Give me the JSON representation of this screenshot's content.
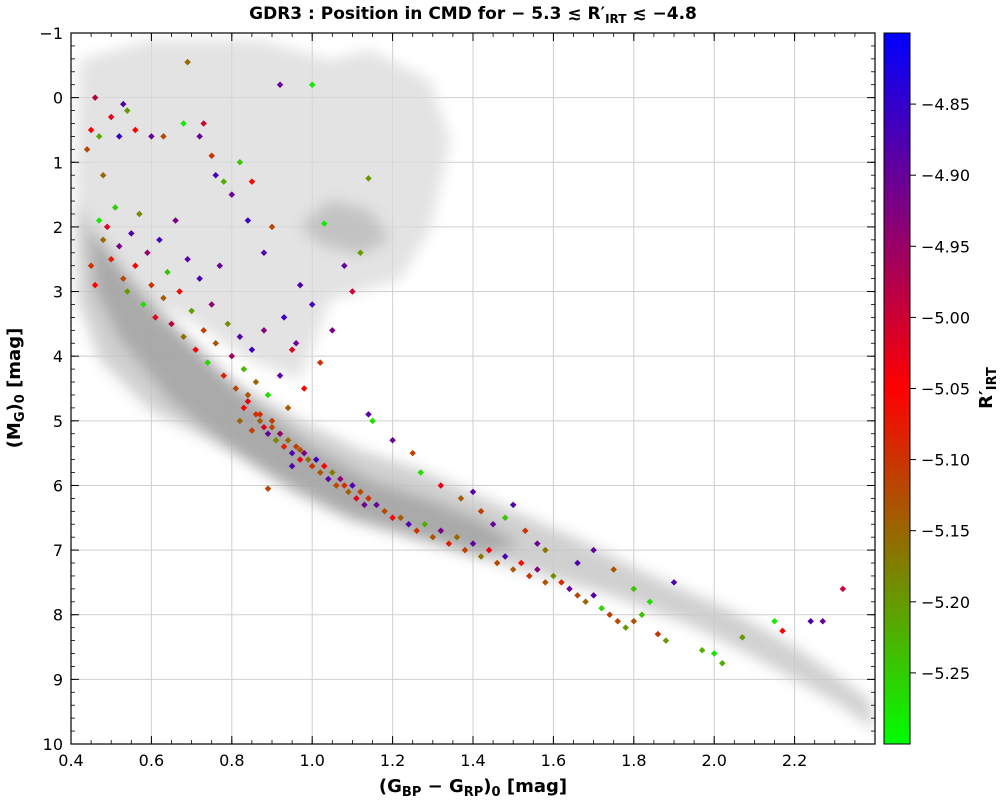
{
  "chart_data": {
    "type": "scatter",
    "title": "GDR3 :  Position in CMD for  − 5.3 ≲ R′",
    "title_sub": "IRT",
    "title_tail": " ≲ −4.8",
    "xlabel": "(G",
    "xlabel_sub1": "BP",
    "xlabel_mid": " − G",
    "xlabel_sub2": "RP",
    "xlabel_close": ")",
    "xlabel_sub3": "0",
    "xlabel_tail": " [mag]",
    "ylabel": "(M",
    "ylabel_sub1": "G",
    "ylabel_close": ")",
    "ylabel_sub2": "0",
    "ylabel_tail": " [mag]",
    "colorbar_label": "R′",
    "colorbar_label_sub": "IRT",
    "xlim": [
      0.4,
      2.4
    ],
    "ylim": [
      10,
      -1
    ],
    "y_inverted": true,
    "grid": true,
    "x_ticks": [
      "0.4",
      "0.6",
      "0.8",
      "1.0",
      "1.2",
      "1.4",
      "1.6",
      "1.8",
      "2.0",
      "2.2"
    ],
    "y_ticks": [
      "−1",
      "0",
      "1",
      "2",
      "3",
      "4",
      "5",
      "6",
      "7",
      "8",
      "9",
      "10"
    ],
    "colorbar": {
      "range": [
        -5.3,
        -4.8
      ],
      "ticks": [
        "−4.85",
        "−4.90",
        "−4.95",
        "−5.00",
        "−5.05",
        "−5.10",
        "−5.15",
        "−5.20",
        "−5.25"
      ],
      "stops": [
        "#00ff00",
        "#ff0000",
        "#0000ff"
      ]
    },
    "background_density": "gray field stars (Gaia DR3 reference population)",
    "points": [
      [
        0.44,
        0.8,
        -5.12
      ],
      [
        0.45,
        0.5,
        -5.05
      ],
      [
        0.46,
        0.0,
        -4.98
      ],
      [
        0.47,
        0.6,
        -5.22
      ],
      [
        0.48,
        1.2,
        -5.15
      ],
      [
        0.5,
        0.3,
        -5.02
      ],
      [
        0.52,
        0.6,
        -4.85
      ],
      [
        0.53,
        0.1,
        -4.88
      ],
      [
        0.54,
        0.2,
        -5.2
      ],
      [
        0.56,
        0.5,
        -5.05
      ],
      [
        0.6,
        0.6,
        -4.9
      ],
      [
        0.63,
        0.6,
        -5.12
      ],
      [
        0.68,
        0.4,
        -5.28
      ],
      [
        0.69,
        -0.55,
        -5.15
      ],
      [
        0.72,
        0.6,
        -4.9
      ],
      [
        0.73,
        0.4,
        -5.0
      ],
      [
        0.75,
        0.9,
        -5.1
      ],
      [
        0.82,
        1.0,
        -5.25
      ],
      [
        0.92,
        -0.2,
        -4.9
      ],
      [
        1.0,
        -0.2,
        -5.28
      ],
      [
        1.14,
        1.25,
        -5.2
      ],
      [
        1.12,
        2.4,
        -5.2
      ],
      [
        1.03,
        1.95,
        -5.28
      ],
      [
        0.78,
        1.3,
        -5.22
      ],
      [
        0.45,
        2.6,
        -5.1
      ],
      [
        0.46,
        2.9,
        -5.05
      ],
      [
        0.47,
        1.9,
        -5.28
      ],
      [
        0.48,
        2.2,
        -5.15
      ],
      [
        0.49,
        2.0,
        -5.02
      ],
      [
        0.5,
        2.5,
        -5.08
      ],
      [
        0.51,
        1.7,
        -5.25
      ],
      [
        0.52,
        2.3,
        -4.92
      ],
      [
        0.53,
        2.8,
        -5.12
      ],
      [
        0.54,
        3.0,
        -5.2
      ],
      [
        0.55,
        2.1,
        -4.88
      ],
      [
        0.56,
        2.6,
        -5.05
      ],
      [
        0.57,
        1.8,
        -5.18
      ],
      [
        0.58,
        3.2,
        -5.27
      ],
      [
        0.59,
        2.4,
        -4.95
      ],
      [
        0.6,
        2.9,
        -5.1
      ],
      [
        0.61,
        3.4,
        -5.02
      ],
      [
        0.62,
        2.2,
        -4.86
      ],
      [
        0.63,
        3.1,
        -5.14
      ],
      [
        0.64,
        2.7,
        -5.24
      ],
      [
        0.65,
        3.5,
        -4.98
      ],
      [
        0.66,
        1.9,
        -4.92
      ],
      [
        0.67,
        3.0,
        -5.06
      ],
      [
        0.68,
        3.7,
        -5.16
      ],
      [
        0.69,
        2.5,
        -4.89
      ],
      [
        0.7,
        3.3,
        -5.21
      ],
      [
        0.71,
        3.9,
        -5.04
      ],
      [
        0.72,
        2.8,
        -4.87
      ],
      [
        0.73,
        3.6,
        -5.11
      ],
      [
        0.74,
        4.1,
        -5.26
      ],
      [
        0.75,
        3.2,
        -4.94
      ],
      [
        0.76,
        3.8,
        -5.13
      ],
      [
        0.77,
        2.6,
        -4.9
      ],
      [
        0.78,
        4.3,
        -5.08
      ],
      [
        0.79,
        3.5,
        -5.19
      ],
      [
        0.8,
        4.0,
        -4.96
      ],
      [
        0.81,
        4.5,
        -5.12
      ],
      [
        0.82,
        3.7,
        -4.88
      ],
      [
        0.83,
        4.2,
        -5.23
      ],
      [
        0.84,
        4.7,
        -5.03
      ],
      [
        0.85,
        3.9,
        -4.86
      ],
      [
        0.86,
        4.4,
        -5.15
      ],
      [
        0.87,
        4.9,
        -5.09
      ],
      [
        0.88,
        3.6,
        -4.93
      ],
      [
        0.89,
        4.6,
        -5.27
      ],
      [
        0.9,
        5.0,
        -5.11
      ],
      [
        0.92,
        4.3,
        -4.89
      ],
      [
        0.94,
        4.8,
        -5.14
      ],
      [
        0.96,
        3.8,
        -4.91
      ],
      [
        0.98,
        4.5,
        -5.05
      ],
      [
        1.0,
        3.2,
        -4.87
      ],
      [
        1.02,
        4.1,
        -5.1
      ],
      [
        0.93,
        3.4,
        -4.86
      ],
      [
        0.95,
        3.9,
        -5.02
      ],
      [
        0.97,
        2.9,
        -4.88
      ],
      [
        1.05,
        3.6,
        -4.92
      ],
      [
        1.08,
        2.6,
        -4.9
      ],
      [
        1.1,
        3.0,
        -5.0
      ],
      [
        0.88,
        2.4,
        -4.88
      ],
      [
        0.84,
        1.9,
        -4.86
      ],
      [
        0.8,
        1.5,
        -4.9
      ],
      [
        0.76,
        1.2,
        -4.87
      ],
      [
        0.85,
        1.3,
        -5.06
      ],
      [
        0.9,
        2.0,
        -5.12
      ],
      [
        0.86,
        4.9,
        -5.1
      ],
      [
        0.87,
        5.0,
        -5.14
      ],
      [
        0.88,
        5.1,
        -5.02
      ],
      [
        0.89,
        5.2,
        -4.9
      ],
      [
        0.9,
        5.1,
        -5.12
      ],
      [
        0.91,
        5.3,
        -5.18
      ],
      [
        0.92,
        5.2,
        -4.95
      ],
      [
        0.93,
        5.4,
        -5.08
      ],
      [
        0.94,
        5.3,
        -5.15
      ],
      [
        0.95,
        5.5,
        -4.88
      ],
      [
        0.96,
        5.4,
        -5.11
      ],
      [
        0.97,
        5.6,
        -5.03
      ],
      [
        0.98,
        5.5,
        -4.92
      ],
      [
        0.99,
        5.6,
        -5.16
      ],
      [
        1.0,
        5.7,
        -5.1
      ],
      [
        1.01,
        5.6,
        -4.86
      ],
      [
        1.02,
        5.8,
        -5.13
      ],
      [
        1.03,
        5.7,
        -5.05
      ],
      [
        1.04,
        5.9,
        -4.89
      ],
      [
        1.05,
        5.8,
        -5.17
      ],
      [
        1.06,
        6.0,
        -5.12
      ],
      [
        1.07,
        5.9,
        -4.94
      ],
      [
        1.08,
        6.0,
        -5.09
      ],
      [
        1.09,
        6.1,
        -5.14
      ],
      [
        1.1,
        6.0,
        -4.88
      ],
      [
        1.11,
        6.2,
        -5.02
      ],
      [
        1.12,
        6.1,
        -5.12
      ],
      [
        1.13,
        6.3,
        -4.91
      ],
      [
        0.89,
        6.05,
        -5.12
      ],
      [
        0.84,
        4.6,
        -5.13
      ],
      [
        0.83,
        4.8,
        -5.05
      ],
      [
        0.82,
        5.0,
        -5.15
      ],
      [
        0.85,
        5.15,
        -5.11
      ],
      [
        0.95,
        5.7,
        -4.88
      ],
      [
        0.97,
        5.45,
        -5.13
      ],
      [
        1.14,
        6.2,
        -5.1
      ],
      [
        1.16,
        6.3,
        -4.9
      ],
      [
        1.18,
        6.4,
        -5.12
      ],
      [
        1.2,
        6.5,
        -5.05
      ],
      [
        1.22,
        6.5,
        -5.14
      ],
      [
        1.24,
        6.6,
        -4.88
      ],
      [
        1.26,
        6.7,
        -5.1
      ],
      [
        1.28,
        6.6,
        -5.22
      ],
      [
        1.3,
        6.8,
        -5.13
      ],
      [
        1.32,
        6.7,
        -4.92
      ],
      [
        1.34,
        6.9,
        -5.08
      ],
      [
        1.36,
        6.8,
        -5.15
      ],
      [
        1.38,
        7.0,
        -5.11
      ],
      [
        1.4,
        6.9,
        -4.89
      ],
      [
        1.42,
        7.1,
        -5.17
      ],
      [
        1.44,
        7.0,
        -5.04
      ],
      [
        1.46,
        7.2,
        -5.12
      ],
      [
        1.48,
        7.1,
        -4.87
      ],
      [
        1.5,
        7.3,
        -5.14
      ],
      [
        1.52,
        7.2,
        -5.06
      ],
      [
        1.54,
        7.4,
        -5.1
      ],
      [
        1.56,
        7.3,
        -4.93
      ],
      [
        1.58,
        7.5,
        -5.13
      ],
      [
        1.6,
        7.4,
        -5.19
      ],
      [
        1.62,
        7.5,
        -5.09
      ],
      [
        1.64,
        7.6,
        -4.9
      ],
      [
        1.66,
        7.7,
        -5.12
      ],
      [
        1.68,
        7.8,
        -5.15
      ],
      [
        1.7,
        7.7,
        -4.88
      ],
      [
        1.72,
        7.9,
        -5.26
      ],
      [
        1.74,
        8.0,
        -5.11
      ],
      [
        1.15,
        5.0,
        -5.27
      ],
      [
        1.14,
        4.9,
        -4.89
      ],
      [
        1.2,
        5.3,
        -4.9
      ],
      [
        1.25,
        5.5,
        -5.12
      ],
      [
        1.27,
        5.8,
        -5.27
      ],
      [
        1.32,
        6.0,
        -5.02
      ],
      [
        1.37,
        6.2,
        -5.14
      ],
      [
        1.4,
        6.1,
        -4.89
      ],
      [
        1.42,
        6.4,
        -5.11
      ],
      [
        1.45,
        6.6,
        -4.9
      ],
      [
        1.48,
        6.5,
        -5.24
      ],
      [
        1.5,
        6.3,
        -4.88
      ],
      [
        1.53,
        6.7,
        -5.1
      ],
      [
        1.56,
        6.9,
        -4.91
      ],
      [
        1.58,
        7.0,
        -5.16
      ],
      [
        1.66,
        7.2,
        -4.88
      ],
      [
        1.7,
        7.0,
        -4.9
      ],
      [
        1.75,
        7.3,
        -5.13
      ],
      [
        1.8,
        7.6,
        -5.24
      ],
      [
        1.76,
        8.1,
        -5.12
      ],
      [
        1.78,
        8.2,
        -5.2
      ],
      [
        1.8,
        8.1,
        -5.13
      ],
      [
        1.82,
        8.0,
        -5.24
      ],
      [
        1.84,
        7.8,
        -5.27
      ],
      [
        1.86,
        8.3,
        -5.1
      ],
      [
        1.88,
        8.4,
        -5.2
      ],
      [
        1.9,
        7.5,
        -4.88
      ],
      [
        1.97,
        8.55,
        -5.22
      ],
      [
        2.0,
        8.6,
        -5.28
      ],
      [
        2.02,
        8.75,
        -5.22
      ],
      [
        2.07,
        8.35,
        -5.2
      ],
      [
        2.15,
        8.1,
        -5.28
      ],
      [
        2.17,
        8.25,
        -5.05
      ],
      [
        2.24,
        8.1,
        -4.88
      ],
      [
        2.27,
        8.1,
        -4.9
      ],
      [
        2.32,
        7.6,
        -5.0
      ]
    ]
  }
}
